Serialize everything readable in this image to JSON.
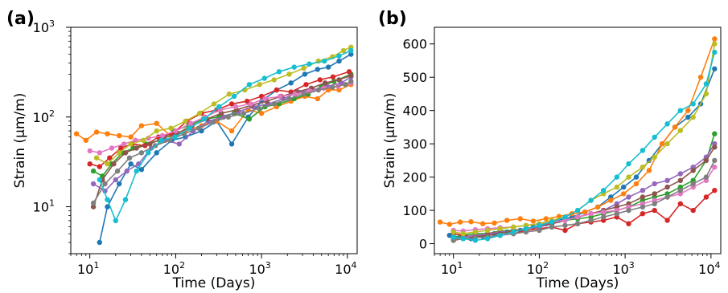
{
  "chart_data": [
    {
      "panel": "(a)",
      "type": "line",
      "xlabel": "Time (Days)",
      "ylabel": "Strain (μm/m)",
      "xscale": "log",
      "yscale": "log",
      "xlim": [
        6,
        13000
      ],
      "ylim": [
        3,
        1000
      ],
      "x_ticks": [
        {
          "value": 10,
          "base": "10",
          "exp": "1"
        },
        {
          "value": 100,
          "base": "10",
          "exp": "2"
        },
        {
          "value": 1000,
          "base": "10",
          "exp": "3"
        },
        {
          "value": 10000,
          "base": "10",
          "exp": "4"
        }
      ],
      "y_ticks": [
        {
          "value": 10,
          "base": "10",
          "exp": "1"
        },
        {
          "value": 100,
          "base": "10",
          "exp": "2"
        },
        {
          "value": 1000,
          "base": "10",
          "exp": "3"
        }
      ],
      "grid": false,
      "series": [
        {
          "color": "#1f77b4",
          "x": [
            13,
            16,
            22,
            30,
            40,
            60,
            90,
            130,
            200,
            300,
            450,
            700,
            1000,
            1500,
            2200,
            3200,
            4500,
            6000,
            8000,
            11000
          ],
          "y": [
            4,
            10,
            18,
            30,
            26,
            40,
            55,
            60,
            70,
            90,
            50,
            100,
            150,
            200,
            240,
            300,
            340,
            360,
            420,
            500
          ]
        },
        {
          "color": "#ff7f0e",
          "x": [
            7,
            9,
            12,
            16,
            22,
            30,
            40,
            60,
            90,
            130,
            200,
            300,
            450,
            700,
            1000,
            1500,
            2200,
            3200,
            4500,
            6000,
            8000,
            11000
          ],
          "y": [
            65,
            55,
            68,
            65,
            62,
            60,
            80,
            85,
            60,
            70,
            80,
            90,
            70,
            120,
            110,
            130,
            150,
            170,
            160,
            200,
            200,
            230
          ]
        },
        {
          "color": "#2ca02c",
          "x": [
            11,
            14,
            18,
            24,
            32,
            45,
            65,
            95,
            140,
            210,
            320,
            480,
            720,
            1100,
            1600,
            2400,
            3500,
            5000,
            7000,
            11000
          ],
          "y": [
            25,
            22,
            30,
            40,
            45,
            50,
            55,
            70,
            80,
            95,
            100,
            110,
            95,
            130,
            140,
            160,
            180,
            220,
            250,
            300
          ]
        },
        {
          "color": "#d62728",
          "x": [
            10,
            13,
            17,
            23,
            31,
            44,
            63,
            92,
            135,
            200,
            300,
            450,
            680,
            1000,
            1500,
            2200,
            3300,
            4800,
            6800,
            10500
          ],
          "y": [
            30,
            28,
            35,
            45,
            50,
            48,
            60,
            65,
            90,
            110,
            120,
            140,
            150,
            170,
            200,
            190,
            230,
            260,
            280,
            320
          ]
        },
        {
          "color": "#9467bd",
          "x": [
            11,
            15,
            20,
            27,
            37,
            52,
            75,
            110,
            160,
            240,
            360,
            540,
            800,
            1200,
            1800,
            2700,
            4000,
            5800,
            8500,
            11000
          ],
          "y": [
            18,
            15,
            20,
            25,
            30,
            45,
            55,
            50,
            70,
            90,
            100,
            115,
            130,
            140,
            160,
            190,
            200,
            220,
            240,
            280
          ]
        },
        {
          "color": "#8c564b",
          "x": [
            11,
            14,
            19,
            26,
            35,
            50,
            72,
            105,
            155,
            230,
            340,
            510,
            760,
            1150,
            1700,
            2550,
            3800,
            5500,
            8000,
            11000
          ],
          "y": [
            10,
            20,
            30,
            40,
            45,
            50,
            58,
            66,
            80,
            95,
            110,
            120,
            135,
            150,
            170,
            190,
            210,
            240,
            260,
            290
          ]
        },
        {
          "color": "#e377c2",
          "x": [
            10,
            13,
            18,
            25,
            34,
            48,
            70,
            100,
            150,
            220,
            330,
            500,
            750,
            1100,
            1650,
            2450,
            3650,
            5300,
            7800,
            11000
          ],
          "y": [
            42,
            40,
            45,
            50,
            55,
            58,
            62,
            70,
            85,
            100,
            120,
            130,
            140,
            160,
            170,
            180,
            195,
            210,
            220,
            240
          ]
        },
        {
          "color": "#7f7f7f",
          "x": [
            11,
            15,
            21,
            29,
            40,
            58,
            85,
            125,
            185,
            275,
            410,
            620,
            930,
            1400,
            2100,
            3100,
            4600,
            6700,
            9500,
            11000
          ],
          "y": [
            11,
            18,
            25,
            35,
            40,
            48,
            55,
            65,
            75,
            88,
            100,
            110,
            125,
            140,
            160,
            180,
            200,
            215,
            230,
            250
          ]
        },
        {
          "color": "#bcbd22",
          "x": [
            12,
            16,
            22,
            30,
            42,
            60,
            88,
            130,
            190,
            280,
            420,
            640,
            950,
            1400,
            2100,
            3100,
            4600,
            6700,
            9000,
            11000
          ],
          "y": [
            35,
            30,
            40,
            50,
            55,
            70,
            75,
            90,
            110,
            140,
            180,
            200,
            230,
            260,
            300,
            350,
            420,
            470,
            550,
            600
          ]
        },
        {
          "color": "#17becf",
          "x": [
            13,
            16,
            20,
            26,
            35,
            48,
            68,
            98,
            145,
            215,
            320,
            480,
            720,
            1080,
            1600,
            2400,
            3600,
            5400,
            8000,
            11000
          ],
          "y": [
            20,
            12,
            7,
            12,
            25,
            40,
            55,
            60,
            75,
            95,
            130,
            170,
            230,
            270,
            320,
            360,
            390,
            420,
            480,
            550
          ]
        }
      ]
    },
    {
      "panel": "(b)",
      "type": "line",
      "xlabel": "Time (Days)",
      "ylabel": "Strain (μm/m)",
      "xscale": "log",
      "yscale": "linear",
      "xlim": [
        6,
        13000
      ],
      "ylim": [
        -30,
        650
      ],
      "x_ticks": [
        {
          "value": 10,
          "base": "10",
          "exp": "1"
        },
        {
          "value": 100,
          "base": "10",
          "exp": "2"
        },
        {
          "value": 1000,
          "base": "10",
          "exp": "3"
        },
        {
          "value": 10000,
          "base": "10",
          "exp": "4"
        }
      ],
      "y_ticks": [
        {
          "value": 0,
          "label": "0"
        },
        {
          "value": 100,
          "label": "100"
        },
        {
          "value": 200,
          "label": "200"
        },
        {
          "value": 300,
          "label": "300"
        },
        {
          "value": 400,
          "label": "400"
        },
        {
          "value": 500,
          "label": "500"
        },
        {
          "value": 600,
          "label": "600"
        }
      ],
      "grid": false,
      "series": [
        {
          "color": "#1f77b4",
          "x": [
            9,
            12,
            16,
            22,
            30,
            42,
            60,
            85,
            120,
            170,
            240,
            340,
            480,
            680,
            960,
            1350,
            1900,
            2700,
            3800,
            5400,
            7600,
            11000
          ],
          "y": [
            25,
            20,
            15,
            22,
            30,
            35,
            40,
            50,
            60,
            70,
            80,
            95,
            110,
            140,
            170,
            200,
            250,
            300,
            350,
            380,
            420,
            525
          ]
        },
        {
          "color": "#ff7f0e",
          "x": [
            7,
            9,
            12,
            16,
            22,
            30,
            42,
            60,
            85,
            120,
            170,
            240,
            340,
            480,
            680,
            960,
            1350,
            1900,
            2700,
            3800,
            5400,
            7600,
            11000
          ],
          "y": [
            65,
            58,
            65,
            66,
            60,
            62,
            70,
            75,
            68,
            75,
            82,
            90,
            95,
            110,
            130,
            150,
            180,
            220,
            300,
            350,
            400,
            500,
            615
          ]
        },
        {
          "color": "#2ca02c",
          "x": [
            10,
            13,
            18,
            25,
            35,
            50,
            70,
            100,
            140,
            200,
            280,
            400,
            560,
            800,
            1100,
            1600,
            2200,
            3100,
            4400,
            6200,
            8800,
            11000
          ],
          "y": [
            20,
            25,
            30,
            30,
            38,
            40,
            45,
            55,
            60,
            70,
            75,
            80,
            90,
            100,
            110,
            130,
            140,
            150,
            170,
            190,
            250,
            330
          ]
        },
        {
          "color": "#d62728",
          "x": [
            10,
            13,
            18,
            25,
            35,
            50,
            70,
            100,
            140,
            200,
            280,
            400,
            560,
            800,
            1100,
            1600,
            2200,
            3100,
            4400,
            6200,
            8800,
            11000
          ],
          "y": [
            30,
            25,
            20,
            30,
            35,
            30,
            40,
            45,
            50,
            40,
            60,
            65,
            70,
            80,
            60,
            90,
            100,
            70,
            120,
            100,
            140,
            160
          ]
        },
        {
          "color": "#9467bd",
          "x": [
            10,
            13,
            18,
            25,
            35,
            50,
            70,
            100,
            140,
            200,
            280,
            400,
            560,
            800,
            1100,
            1600,
            2200,
            3100,
            4400,
            6200,
            8800,
            11000
          ],
          "y": [
            15,
            20,
            25,
            28,
            35,
            38,
            45,
            50,
            60,
            70,
            80,
            90,
            100,
            120,
            140,
            160,
            180,
            190,
            210,
            230,
            260,
            300
          ]
        },
        {
          "color": "#8c564b",
          "x": [
            10,
            13,
            18,
            25,
            35,
            50,
            70,
            100,
            140,
            200,
            280,
            400,
            560,
            800,
            1100,
            1600,
            2200,
            3100,
            4400,
            6200,
            8800,
            11000
          ],
          "y": [
            10,
            15,
            20,
            25,
            30,
            40,
            45,
            55,
            60,
            70,
            80,
            90,
            100,
            110,
            120,
            140,
            150,
            170,
            190,
            220,
            250,
            290
          ]
        },
        {
          "color": "#e377c2",
          "x": [
            10,
            13,
            18,
            25,
            35,
            50,
            70,
            100,
            140,
            200,
            280,
            400,
            560,
            800,
            1100,
            1600,
            2200,
            3100,
            4400,
            6200,
            8800,
            11000
          ],
          "y": [
            40,
            38,
            42,
            45,
            48,
            50,
            55,
            60,
            65,
            70,
            80,
            90,
            95,
            100,
            110,
            120,
            130,
            140,
            150,
            170,
            190,
            230
          ]
        },
        {
          "color": "#7f7f7f",
          "x": [
            10,
            13,
            18,
            25,
            35,
            50,
            70,
            100,
            140,
            200,
            280,
            400,
            560,
            800,
            1100,
            1600,
            2200,
            3100,
            4400,
            6200,
            8800,
            11000
          ],
          "y": [
            12,
            15,
            18,
            20,
            25,
            30,
            35,
            40,
            50,
            55,
            60,
            70,
            80,
            90,
            100,
            110,
            120,
            140,
            160,
            180,
            200,
            250
          ]
        },
        {
          "color": "#bcbd22",
          "x": [
            10,
            13,
            18,
            25,
            35,
            50,
            70,
            100,
            140,
            200,
            280,
            400,
            560,
            800,
            1100,
            1600,
            2200,
            3100,
            4400,
            6200,
            8800,
            11000
          ],
          "y": [
            35,
            30,
            35,
            40,
            45,
            50,
            55,
            60,
            70,
            80,
            100,
            130,
            150,
            170,
            200,
            230,
            260,
            300,
            340,
            380,
            450,
            600
          ]
        },
        {
          "color": "#17becf",
          "x": [
            10,
            13,
            18,
            25,
            35,
            50,
            70,
            100,
            140,
            200,
            280,
            400,
            560,
            800,
            1100,
            1600,
            2200,
            3100,
            4400,
            6200,
            8800,
            11000
          ],
          "y": [
            20,
            15,
            10,
            15,
            25,
            35,
            45,
            55,
            65,
            80,
            100,
            130,
            160,
            200,
            240,
            280,
            320,
            360,
            400,
            420,
            480,
            575
          ]
        }
      ]
    }
  ]
}
